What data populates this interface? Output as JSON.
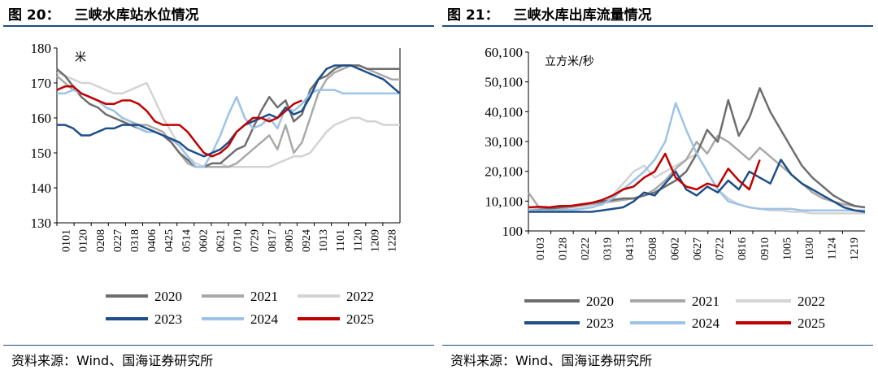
{
  "left": {
    "fig_label": "图 20：",
    "fig_title": "三峡水库站水位情况",
    "source": "资料来源：Wind、国海证券研究所"
  },
  "right": {
    "fig_label": "图 21：",
    "fig_title": "三峡水库出库流量情况",
    "source": "资料来源：Wind、国海证券研究所"
  },
  "chart_data": [
    {
      "type": "line",
      "title": "三峡水库站水位情况",
      "ylabel": "米",
      "xlabel": "",
      "ylim": [
        130,
        180
      ],
      "yticks": [
        130,
        140,
        150,
        160,
        170,
        180
      ],
      "x_ticks": [
        "0101",
        "0120",
        "0208",
        "0227",
        "0318",
        "0406",
        "0425",
        "0514",
        "0602",
        "0621",
        "0710",
        "0729",
        "0817",
        "0905",
        "0924",
        "1013",
        "1101",
        "1120",
        "1209",
        "1228"
      ],
      "colors": {
        "2020": "#6e6e6e",
        "2021": "#a9a9a9",
        "2022": "#d3d3d3",
        "2023": "#1f4e88",
        "2024": "#9dc3e6",
        "2025": "#c00000"
      },
      "series": [
        {
          "name": "2020",
          "values": [
            174,
            172,
            169,
            166,
            164,
            163,
            161,
            160,
            159,
            158,
            157,
            156,
            156,
            155,
            153,
            150,
            148,
            146,
            146,
            147,
            147,
            149,
            151,
            152,
            157,
            162,
            166,
            163,
            165,
            159,
            161,
            168,
            171,
            172,
            174,
            175,
            175,
            175,
            174,
            174,
            174,
            174,
            174
          ]
        },
        {
          "name": "2021",
          "values": [
            172,
            170,
            168,
            167,
            166,
            165,
            163,
            162,
            160,
            159,
            158,
            158,
            157,
            156,
            153,
            150,
            147,
            146,
            146,
            146,
            146,
            146,
            147,
            149,
            151,
            153,
            155,
            151,
            158,
            150,
            153,
            160,
            167,
            171,
            173,
            174,
            175,
            175,
            174,
            173,
            172,
            171,
            171
          ]
        },
        {
          "name": "2022",
          "values": [
            173,
            172,
            171,
            170,
            170,
            169,
            168,
            167,
            167,
            168,
            169,
            170,
            165,
            160,
            156,
            152,
            149,
            147,
            146,
            147,
            147,
            146,
            146,
            146,
            146,
            146,
            146,
            147,
            148,
            149,
            149,
            150,
            153,
            156,
            158,
            159,
            160,
            160,
            159,
            159,
            158,
            158,
            158
          ]
        },
        {
          "name": "2023",
          "values": [
            158,
            158,
            157,
            155,
            155,
            156,
            157,
            157,
            158,
            158,
            158,
            157,
            156,
            155,
            154,
            153,
            151,
            150,
            149,
            150,
            151,
            153,
            156,
            158,
            159,
            160,
            161,
            160,
            163,
            161,
            162,
            166,
            171,
            174,
            175,
            175,
            175,
            174,
            173,
            172,
            171,
            169,
            167
          ]
        },
        {
          "name": "2024",
          "values": [
            167,
            167,
            168,
            167,
            166,
            165,
            163,
            162,
            160,
            159,
            157,
            156,
            156,
            155,
            154,
            152,
            149,
            146,
            146,
            150,
            155,
            161,
            166,
            160,
            157,
            158,
            160,
            157,
            163,
            162,
            164,
            167,
            168,
            168,
            168,
            167,
            167,
            167,
            167,
            167,
            167,
            167,
            167
          ]
        },
        {
          "name": "2025",
          "values": [
            168,
            169,
            169,
            167,
            166,
            165,
            164,
            164,
            165,
            165,
            164,
            162,
            159,
            158,
            158,
            158,
            156,
            153,
            150,
            149,
            150,
            152,
            156,
            158,
            160,
            160,
            159,
            160,
            162,
            164,
            165
          ]
        }
      ]
    },
    {
      "type": "line",
      "title": "三峡水库出库流量情况",
      "ylabel": "立方米/秒",
      "xlabel": "",
      "ylim": [
        100,
        60100
      ],
      "yticks": [
        100,
        10100,
        20100,
        30100,
        40100,
        50100,
        60100
      ],
      "ytick_labels": [
        "100",
        "10,100",
        "20,100",
        "30,100",
        "40,100",
        "50,100",
        "60,100"
      ],
      "x_ticks": [
        "0103",
        "0128",
        "0222",
        "0319",
        "0413",
        "0508",
        "0602",
        "0627",
        "0722",
        "0816",
        "0910",
        "1005",
        "1030",
        "1124",
        "1219"
      ],
      "colors": {
        "2020": "#6e6e6e",
        "2021": "#a9a9a9",
        "2022": "#d3d3d3",
        "2023": "#1f4e88",
        "2024": "#9dc3e6",
        "2025": "#c00000"
      },
      "series": [
        {
          "name": "2020",
          "values": [
            7000,
            7200,
            7500,
            8000,
            8500,
            9000,
            9500,
            10000,
            10500,
            11000,
            11000,
            12000,
            13000,
            15000,
            17000,
            20000,
            26000,
            34000,
            30000,
            44000,
            32000,
            38000,
            48000,
            40000,
            34000,
            28000,
            22000,
            18000,
            15000,
            12000,
            10000,
            8500,
            8000
          ]
        },
        {
          "name": "2021",
          "values": [
            13000,
            8000,
            7500,
            7500,
            8000,
            8500,
            9000,
            9500,
            10000,
            10500,
            11000,
            12000,
            14000,
            17000,
            21000,
            24000,
            30000,
            26000,
            32000,
            30000,
            27000,
            24000,
            28000,
            25000,
            22000,
            19000,
            16000,
            13000,
            11000,
            10000,
            9000,
            8500,
            8000
          ]
        },
        {
          "name": "2022",
          "values": [
            8000,
            7500,
            7000,
            6500,
            7000,
            7500,
            8000,
            9000,
            12000,
            16000,
            20000,
            22000,
            18000,
            20000,
            22000,
            24000,
            26000,
            20000,
            14000,
            11000,
            9000,
            8000,
            7500,
            7000,
            7000,
            6500,
            6500,
            6000,
            6000,
            6000,
            6000,
            6000,
            6000
          ]
        },
        {
          "name": "2023",
          "values": [
            6500,
            6500,
            6500,
            6500,
            6500,
            6500,
            6500,
            7000,
            7500,
            8000,
            10000,
            13000,
            12000,
            16000,
            20000,
            14000,
            12000,
            15000,
            13000,
            17000,
            14000,
            20000,
            18000,
            16000,
            24000,
            19000,
            16000,
            14000,
            12000,
            10000,
            8000,
            7000,
            6500
          ]
        },
        {
          "name": "2024",
          "values": [
            7000,
            7000,
            7000,
            7000,
            7200,
            7500,
            8000,
            9000,
            11000,
            14000,
            17000,
            20000,
            24000,
            30000,
            43000,
            34000,
            26000,
            20000,
            14000,
            10000,
            9000,
            8000,
            7500,
            7500,
            7500,
            7500,
            7000,
            7000,
            7000,
            7000,
            7000,
            7000,
            7000
          ]
        },
        {
          "name": "2025",
          "values": [
            8000,
            8200,
            8000,
            8500,
            8500,
            9000,
            9500,
            10500,
            12000,
            14000,
            15000,
            18000,
            20000,
            26000,
            18000,
            15000,
            14000,
            16000,
            15000,
            21000,
            17000,
            14000,
            24000
          ]
        }
      ]
    }
  ]
}
